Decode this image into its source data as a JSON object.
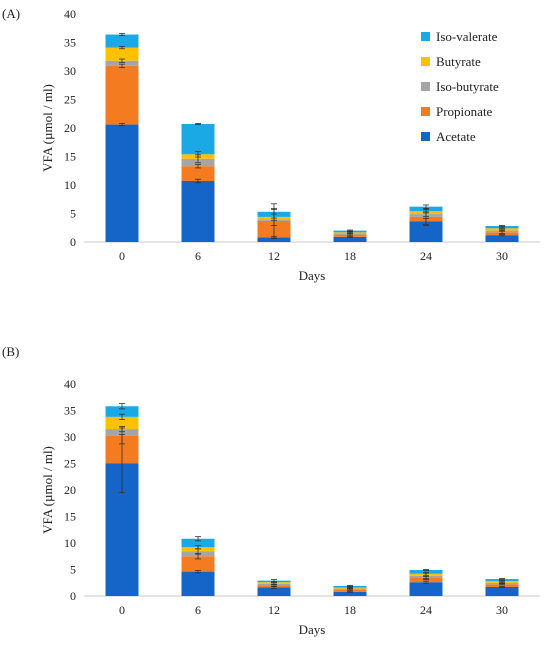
{
  "chart_data": [
    {
      "panel_label": "(A)",
      "type": "bar",
      "stacked": true,
      "xlabel": "Days",
      "ylabel": "VFA (µmol / ml)",
      "ylim": [
        0,
        40
      ],
      "yticks": [
        0,
        5,
        10,
        15,
        20,
        25,
        30,
        35,
        40
      ],
      "categories": [
        "0",
        "6",
        "12",
        "18",
        "24",
        "30"
      ],
      "legend": "top-right",
      "legend_order": [
        "Iso-valerate",
        "Butyrate",
        "Iso-butyrate",
        "Propionate",
        "Acetate"
      ],
      "grid": false,
      "series": [
        {
          "name": "Acetate",
          "color": "#1565c8",
          "values": [
            20.6,
            10.7,
            0.8,
            0.9,
            3.6,
            1.2
          ]
        },
        {
          "name": "Propionate",
          "color": "#f47b20",
          "values": [
            10.3,
            2.6,
            2.9,
            0.4,
            0.8,
            0.5
          ]
        },
        {
          "name": "Iso-butyrate",
          "color": "#a5a5a5",
          "values": [
            0.9,
            1.3,
            0.3,
            0.2,
            0.5,
            0.3
          ]
        },
        {
          "name": "Butyrate",
          "color": "#ffc000",
          "values": [
            2.3,
            0.8,
            0.4,
            0.2,
            0.5,
            0.4
          ]
        },
        {
          "name": "Iso-valerate",
          "color": "#1ba9e6",
          "values": [
            2.3,
            5.3,
            0.9,
            0.3,
            0.8,
            0.4
          ]
        }
      ],
      "error_bars": [
        {
          "series": "Acetate",
          "values": [
            0.2,
            0.3,
            0.2,
            0.1,
            0.5,
            0.1
          ]
        },
        {
          "series": "Propionate",
          "values": [
            0.3,
            0.3,
            3.0,
            0.2,
            1.5,
            0.2
          ]
        },
        {
          "series": "Iso-butyrate",
          "values": [
            0.3,
            0.7,
            0.2,
            0.1,
            0.4,
            0.1
          ]
        },
        {
          "series": "Butyrate",
          "values": [
            0.2,
            0.5,
            1.5,
            0.1,
            0.3,
            0.1
          ]
        },
        {
          "series": "Iso-valerate",
          "values": [
            0.2,
            0.1,
            0.4,
            0.1,
            0.3,
            0.1
          ]
        }
      ]
    },
    {
      "panel_label": "(B)",
      "type": "bar",
      "stacked": true,
      "xlabel": "Days",
      "ylabel": "VFA (µmol / ml)",
      "ylim": [
        0,
        40
      ],
      "yticks": [
        0,
        5,
        10,
        15,
        20,
        25,
        30,
        35,
        40
      ],
      "categories": [
        "0",
        "6",
        "12",
        "18",
        "24",
        "30"
      ],
      "legend": "none",
      "grid": false,
      "series": [
        {
          "name": "Acetate",
          "color": "#1565c8",
          "values": [
            25.0,
            4.6,
            1.6,
            0.8,
            2.6,
            1.7
          ]
        },
        {
          "name": "Propionate",
          "color": "#f47b20",
          "values": [
            5.2,
            2.9,
            0.4,
            0.4,
            0.8,
            0.5
          ]
        },
        {
          "name": "Iso-butyrate",
          "color": "#a5a5a5",
          "values": [
            1.3,
            0.9,
            0.3,
            0.2,
            0.4,
            0.3
          ]
        },
        {
          "name": "Butyrate",
          "color": "#ffc000",
          "values": [
            2.3,
            0.8,
            0.3,
            0.2,
            0.4,
            0.3
          ]
        },
        {
          "name": "Iso-valerate",
          "color": "#1ba9e6",
          "values": [
            2.0,
            1.6,
            0.3,
            0.3,
            0.7,
            0.4
          ]
        }
      ],
      "error_bars": [
        {
          "series": "Acetate",
          "values": [
            5.5,
            0.2,
            0.2,
            0.1,
            0.2,
            0.1
          ]
        },
        {
          "series": "Propionate",
          "values": [
            1.5,
            0.5,
            0.2,
            0.1,
            0.3,
            0.1
          ]
        },
        {
          "series": "Iso-butyrate",
          "values": [
            0.5,
            0.5,
            0.2,
            0.1,
            0.5,
            0.1
          ]
        },
        {
          "series": "Butyrate",
          "values": [
            0.5,
            0.3,
            0.1,
            0.1,
            0.3,
            0.1
          ]
        },
        {
          "series": "Iso-valerate",
          "values": [
            0.5,
            0.4,
            0.2,
            0.1,
            0.1,
            0.1
          ]
        }
      ]
    }
  ]
}
